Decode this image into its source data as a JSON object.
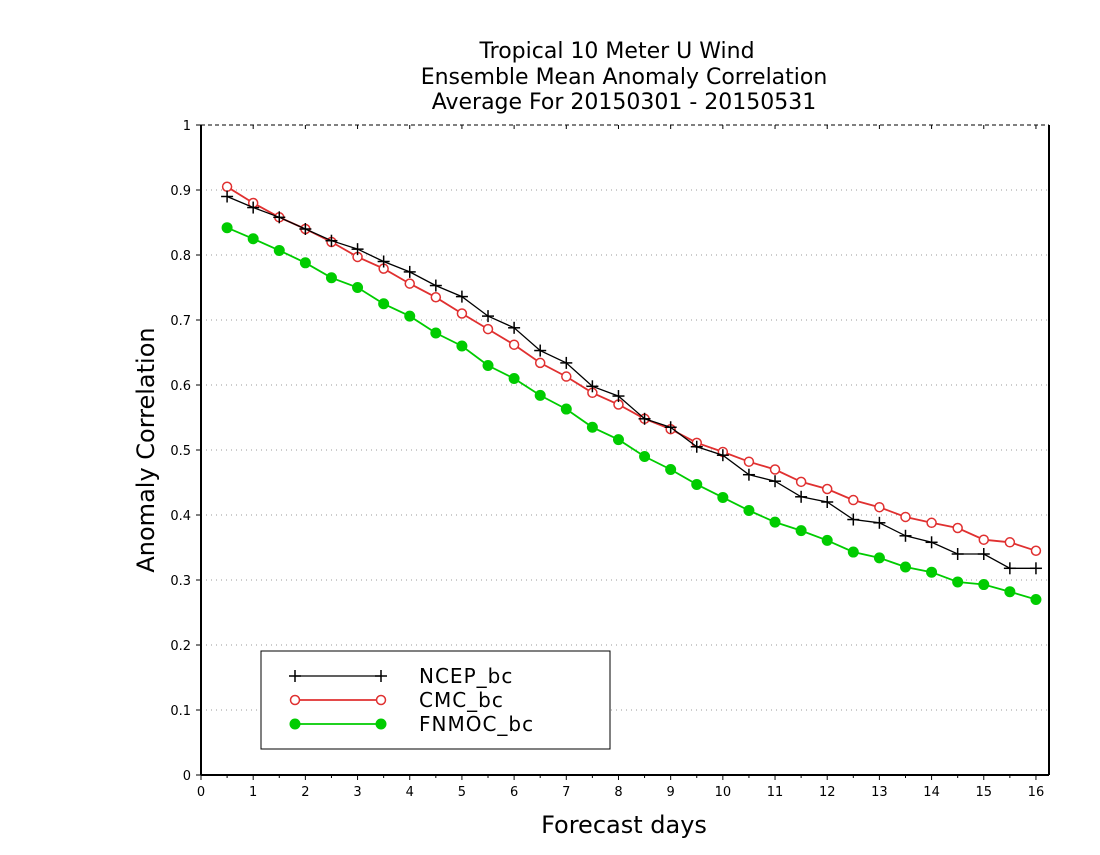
{
  "chart_data": {
    "type": "line",
    "title": [
      "Tropical 10 Meter U Wind",
      "Ensemble Mean Anomaly Correlation",
      "Average For 20150301 - 20150531"
    ],
    "xlabel": "Forecast days",
    "ylabel": "Anomaly Correlation",
    "xlim": [
      0,
      16.25
    ],
    "ylim": [
      0,
      1
    ],
    "xticks": [
      "0",
      "1",
      "2",
      "3",
      "4",
      "5",
      "6",
      "7",
      "8",
      "9",
      "10",
      "11",
      "12",
      "13",
      "14",
      "15",
      "16"
    ],
    "yticks": [
      "0",
      "0.1",
      "0.2",
      "0.3",
      "0.4",
      "0.5",
      "0.6",
      "0.7",
      "0.8",
      "0.9",
      "1"
    ],
    "grid": "horizontal dotted",
    "legend_position": "bottom-left",
    "x": [
      0.5,
      1,
      1.5,
      2,
      2.5,
      3,
      3.5,
      4,
      4.5,
      5,
      5.5,
      6,
      6.5,
      7,
      7.5,
      8,
      8.5,
      9,
      9.5,
      10,
      10.5,
      11,
      11.5,
      12,
      12.5,
      13,
      13.5,
      14,
      14.5,
      15,
      15.5,
      16
    ],
    "series": [
      {
        "name": "NCEP_bc",
        "color": "#000000",
        "marker": "plus",
        "values": [
          0.89,
          0.873,
          0.858,
          0.84,
          0.822,
          0.809,
          0.79,
          0.774,
          0.753,
          0.736,
          0.706,
          0.688,
          0.653,
          0.634,
          0.598,
          0.583,
          0.548,
          0.535,
          0.505,
          0.492,
          0.462,
          0.452,
          0.428,
          0.42,
          0.393,
          0.388,
          0.368,
          0.358,
          0.34,
          0.34,
          0.318,
          0.318
        ]
      },
      {
        "name": "CMC_bc",
        "color": "#e03030",
        "marker": "open-circle",
        "values": [
          0.905,
          0.88,
          0.858,
          0.84,
          0.82,
          0.797,
          0.779,
          0.756,
          0.735,
          0.71,
          0.686,
          0.662,
          0.634,
          0.613,
          0.588,
          0.57,
          0.548,
          0.532,
          0.511,
          0.497,
          0.482,
          0.47,
          0.451,
          0.44,
          0.423,
          0.412,
          0.397,
          0.388,
          0.38,
          0.362,
          0.358,
          0.345
        ]
      },
      {
        "name": "FNMOC_bc",
        "color": "#00cc00",
        "marker": "filled-circle",
        "values": [
          0.842,
          0.825,
          0.807,
          0.788,
          0.765,
          0.75,
          0.725,
          0.706,
          0.68,
          0.66,
          0.63,
          0.61,
          0.584,
          0.563,
          0.535,
          0.516,
          0.49,
          0.47,
          0.447,
          0.427,
          0.407,
          0.389,
          0.376,
          0.361,
          0.343,
          0.334,
          0.32,
          0.312,
          0.297,
          0.293,
          0.282,
          0.27
        ]
      }
    ]
  }
}
